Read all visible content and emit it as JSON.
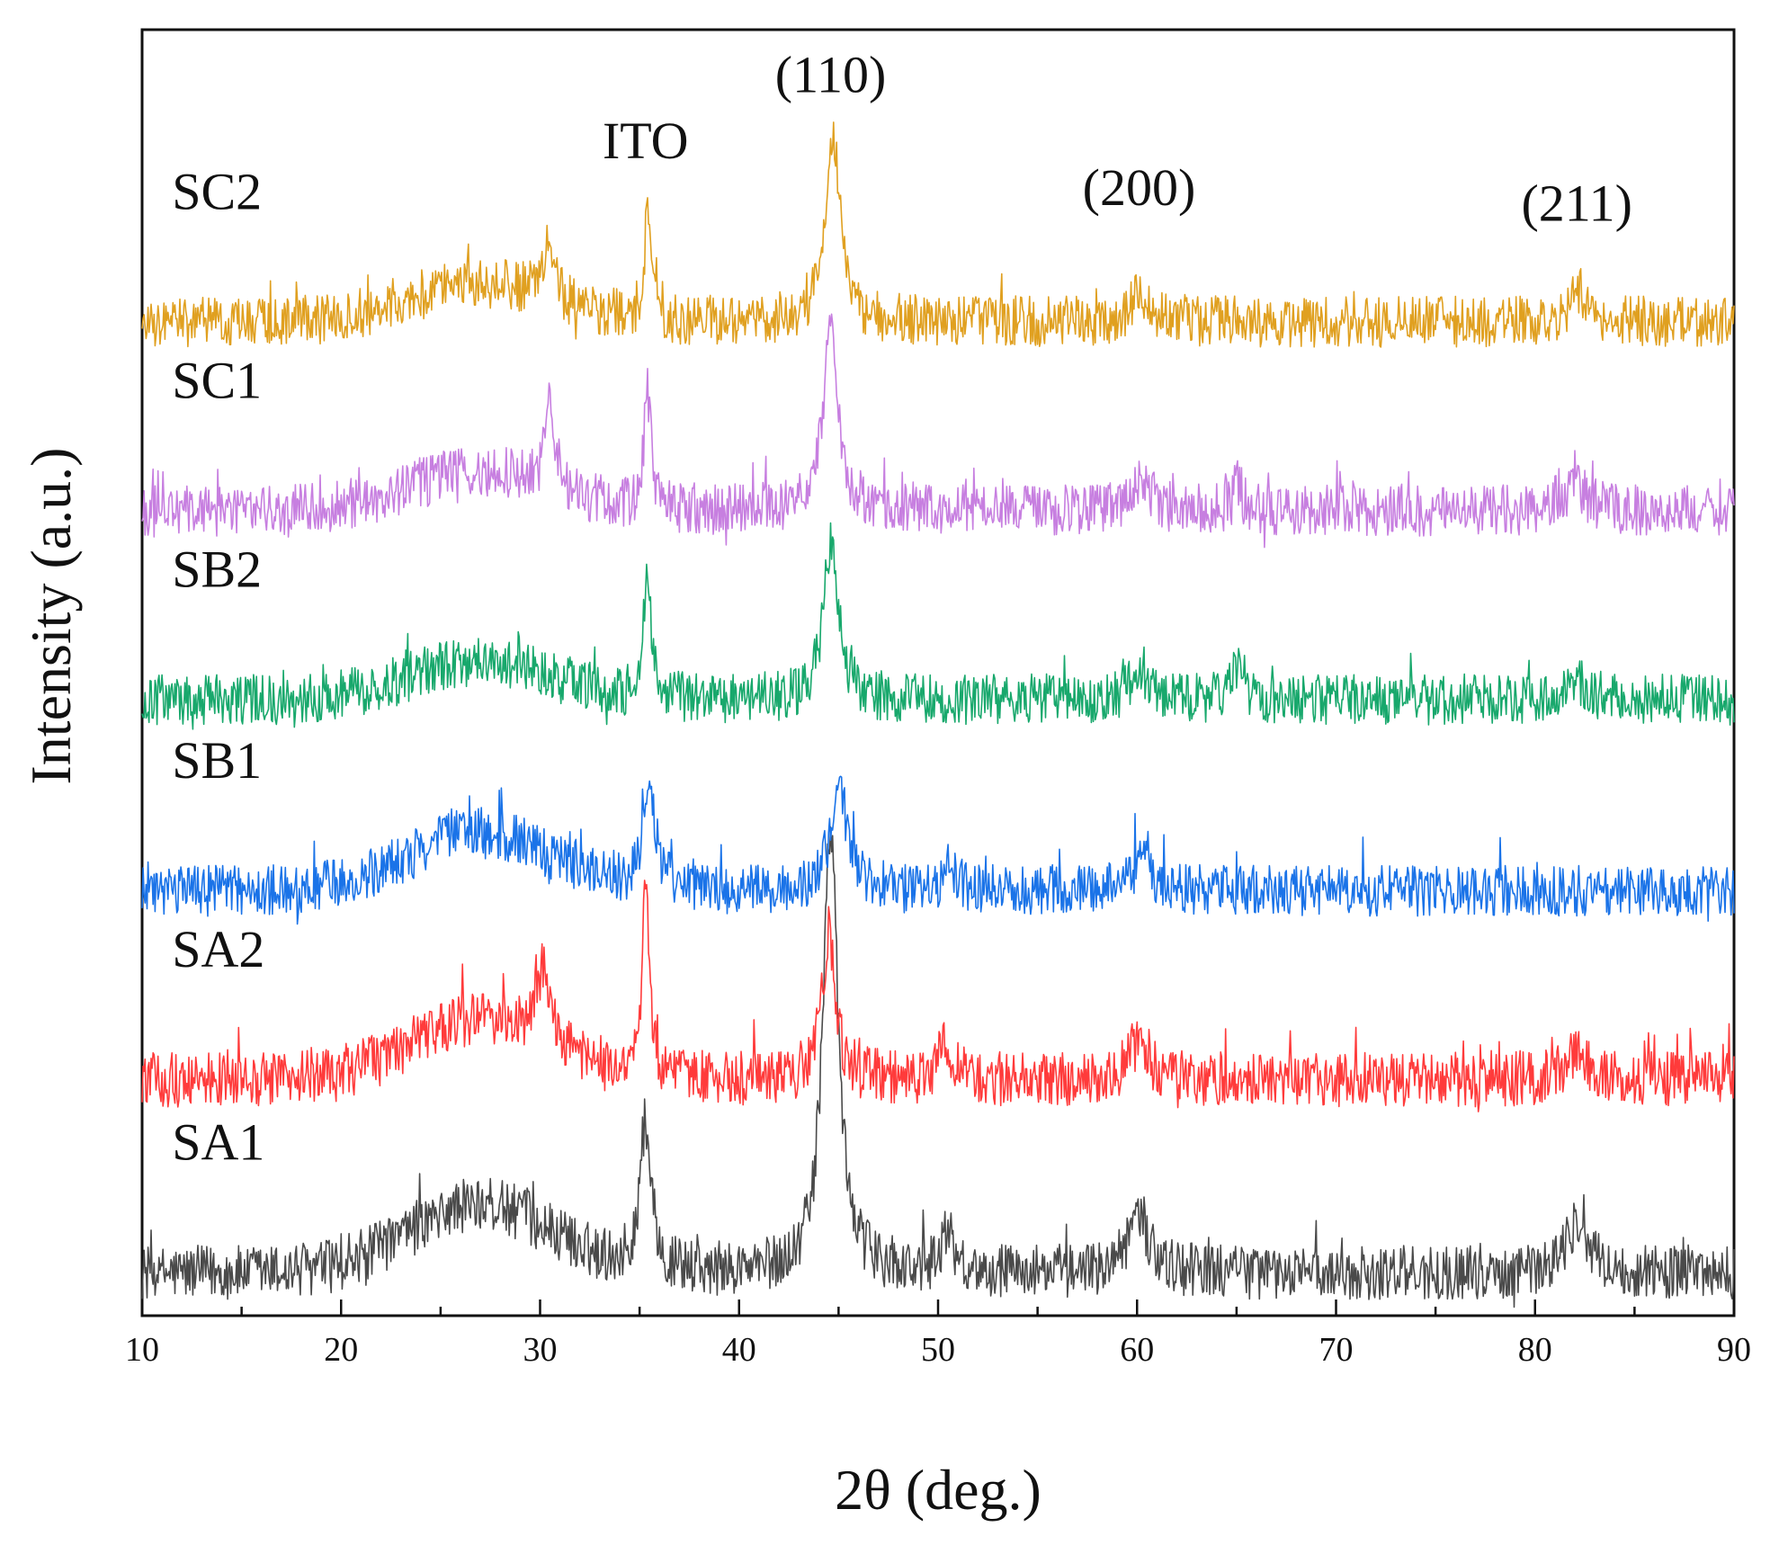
{
  "chart_data": {
    "type": "line",
    "title": "",
    "xlabel": "2θ (deg.)",
    "ylabel": "Intensity (a.u.)",
    "xlim": [
      10,
      90
    ],
    "xticks": [
      10,
      20,
      30,
      40,
      50,
      60,
      70,
      80,
      90
    ],
    "xtick_labels": [
      "10",
      "20",
      "30",
      "40",
      "50",
      "60",
      "70",
      "80",
      "90"
    ],
    "ylim": [
      0,
      6.6
    ],
    "y_ticks_shown": false,
    "grid": false,
    "legend": "none (series labelled inline at left)",
    "peak_labels": [
      {
        "text": "ITO",
        "x": 35.3
      },
      {
        "text": "(110)",
        "x": 44.6
      },
      {
        "text": "(200)",
        "x": 60.1
      },
      {
        "text": "(211)",
        "x": 82.1
      }
    ],
    "series": [
      {
        "name": "SA1",
        "color": "#4a4a4a",
        "baseline": 0.22,
        "noise": 0.14,
        "peaks": [
          {
            "x": 35.3,
            "h": 0.75,
            "w": 0.35
          },
          {
            "x": 44.6,
            "h": 2.3,
            "w": 0.45
          },
          {
            "x": 50.5,
            "h": 0.2,
            "w": 0.4
          },
          {
            "x": 60.1,
            "h": 0.3,
            "w": 0.6
          },
          {
            "x": 82.1,
            "h": 0.25,
            "w": 0.7
          }
        ],
        "humps": [
          {
            "x": 27,
            "h": 0.35,
            "w": 5
          }
        ]
      },
      {
        "name": "SA2",
        "color": "#ff3b3b",
        "baseline": 1.21,
        "noise": 0.14,
        "peaks": [
          {
            "x": 30.2,
            "h": 0.4,
            "w": 0.4
          },
          {
            "x": 35.3,
            "h": 1.0,
            "w": 0.22
          },
          {
            "x": 44.5,
            "h": 0.75,
            "w": 0.4
          },
          {
            "x": 50.4,
            "h": 0.2,
            "w": 0.4
          },
          {
            "x": 60.1,
            "h": 0.2,
            "w": 0.6
          },
          {
            "x": 82.1,
            "h": 0.15,
            "w": 0.6
          }
        ],
        "humps": [
          {
            "x": 27,
            "h": 0.3,
            "w": 5
          }
        ]
      },
      {
        "name": "SB1",
        "color": "#1a73e8",
        "baseline": 2.18,
        "noise": 0.13,
        "peaks": [
          {
            "x": 35.5,
            "h": 0.55,
            "w": 0.35
          },
          {
            "x": 45.0,
            "h": 0.55,
            "w": 0.5
          },
          {
            "x": 50.6,
            "h": 0.12,
            "w": 0.4
          },
          {
            "x": 60.2,
            "h": 0.15,
            "w": 0.6
          }
        ],
        "humps": [
          {
            "x": 27,
            "h": 0.3,
            "w": 5
          }
        ]
      },
      {
        "name": "SB2",
        "color": "#18a86c",
        "baseline": 3.16,
        "noise": 0.13,
        "peaks": [
          {
            "x": 35.4,
            "h": 0.7,
            "w": 0.22
          },
          {
            "x": 44.6,
            "h": 0.8,
            "w": 0.45
          },
          {
            "x": 60.2,
            "h": 0.15,
            "w": 0.6
          },
          {
            "x": 65.0,
            "h": 0.15,
            "w": 0.3
          },
          {
            "x": 82.0,
            "h": 0.12,
            "w": 0.6
          }
        ],
        "humps": [
          {
            "x": 27,
            "h": 0.2,
            "w": 5
          }
        ]
      },
      {
        "name": "SC1",
        "color": "#c77fe0",
        "baseline": 4.13,
        "noise": 0.13,
        "peaks": [
          {
            "x": 30.5,
            "h": 0.45,
            "w": 0.3
          },
          {
            "x": 35.4,
            "h": 0.6,
            "w": 0.22
          },
          {
            "x": 44.6,
            "h": 0.95,
            "w": 0.45
          },
          {
            "x": 60.2,
            "h": 0.15,
            "w": 0.6
          },
          {
            "x": 65.0,
            "h": 0.12,
            "w": 0.3
          },
          {
            "x": 82.1,
            "h": 0.12,
            "w": 0.6
          }
        ],
        "humps": [
          {
            "x": 27,
            "h": 0.2,
            "w": 5
          }
        ]
      },
      {
        "name": "SC2",
        "color": "#e0a020",
        "baseline": 5.1,
        "noise": 0.13,
        "peaks": [
          {
            "x": 30.4,
            "h": 0.3,
            "w": 0.3
          },
          {
            "x": 35.4,
            "h": 0.55,
            "w": 0.2
          },
          {
            "x": 44.7,
            "h": 0.95,
            "w": 0.45
          },
          {
            "x": 60.2,
            "h": 0.15,
            "w": 0.6
          },
          {
            "x": 82.3,
            "h": 0.15,
            "w": 0.6
          }
        ],
        "humps": [
          {
            "x": 27,
            "h": 0.2,
            "w": 5
          }
        ]
      }
    ]
  }
}
